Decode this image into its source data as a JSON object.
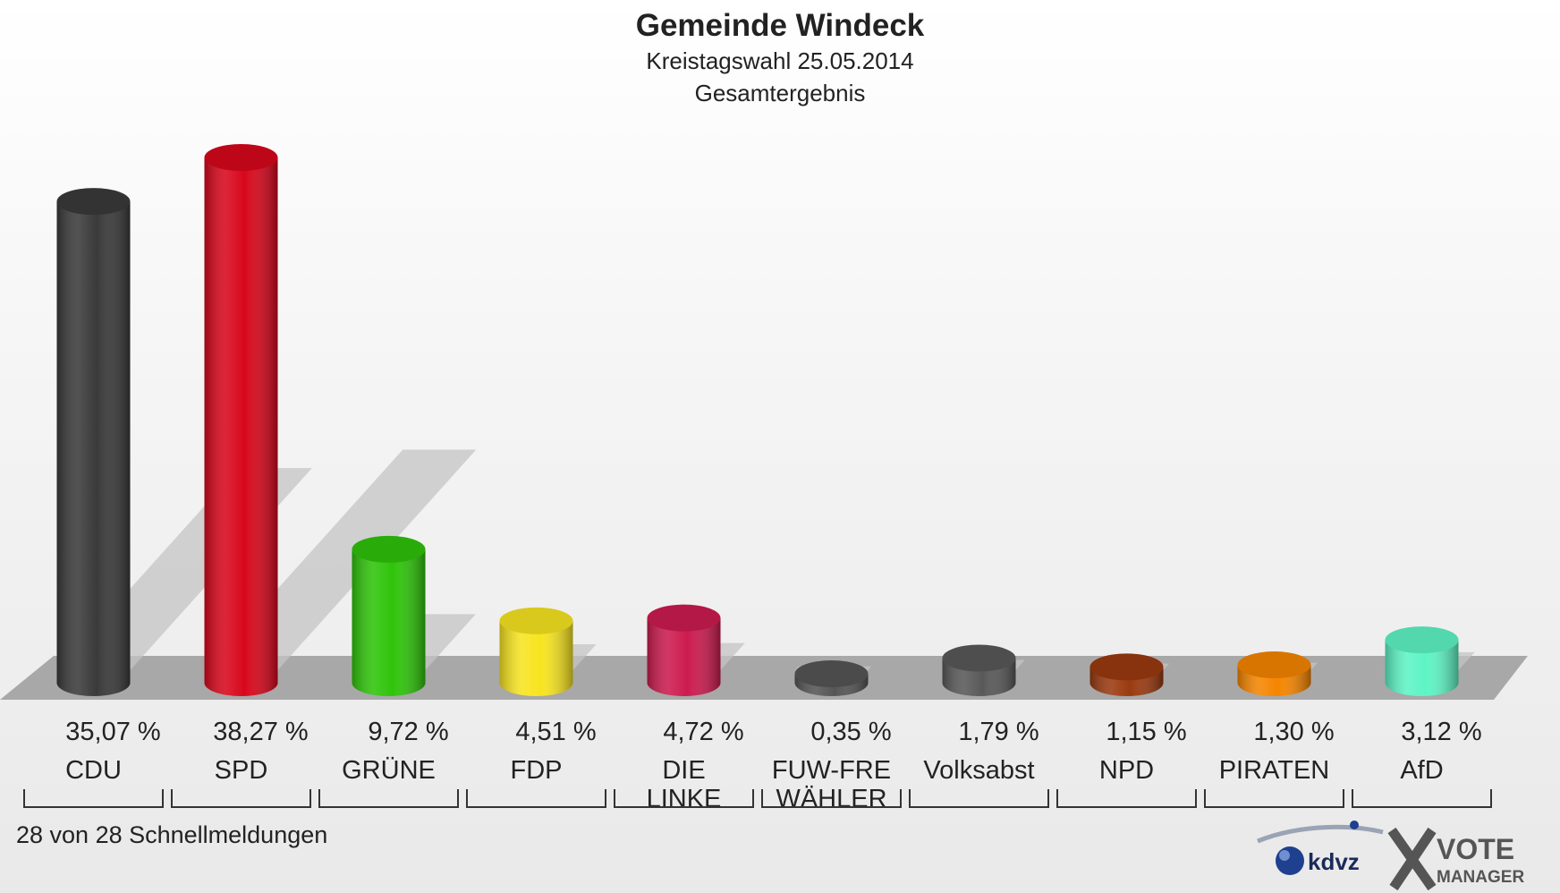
{
  "header": {
    "title": "Gemeinde Windeck",
    "subtitle1": "Kreistagswahl 25.05.2014",
    "subtitle2": "Gesamtergebnis"
  },
  "footer": {
    "note": "28 von 28 Schnellmeldungen",
    "logo_kdvz": "kdvz",
    "logo_vote": "VOTE",
    "logo_manager": "MANAGER"
  },
  "chart_data": {
    "type": "bar",
    "categories": [
      "CDU",
      "SPD",
      "GRÜNE",
      "FDP",
      "DIE LINKE",
      "FUW-FRE WÄHLER",
      "Volksabst",
      "NPD",
      "PIRATEN",
      "AfD"
    ],
    "values": [
      35.07,
      38.27,
      9.72,
      4.51,
      4.72,
      0.35,
      1.79,
      1.15,
      1.3,
      3.12
    ],
    "value_labels": [
      "35,07 %",
      "38,27 %",
      "9,72 %",
      "4,51 %",
      "4,72 %",
      "0,35 %",
      "1,79 %",
      "1,15 %",
      "1,30 %",
      "3,12 %"
    ],
    "label_lines": [
      [
        "CDU"
      ],
      [
        "SPD"
      ],
      [
        "GRÜNE"
      ],
      [
        "FDP"
      ],
      [
        "DIE",
        "LINKE"
      ],
      [
        "FUW-FRE",
        "WÄHLER"
      ],
      [
        "Volksabst"
      ],
      [
        "NPD"
      ],
      [
        "PIRATEN"
      ],
      [
        "AfD"
      ]
    ],
    "colors": [
      "#3a3a3a",
      "#d8071c",
      "#2fc40a",
      "#f7e420",
      "#cc1b4f",
      "#555555",
      "#595959",
      "#9a3a10",
      "#f58500",
      "#5ef4c4"
    ],
    "ylim": [
      0,
      38.27
    ],
    "legend": "none",
    "grid": false
  }
}
